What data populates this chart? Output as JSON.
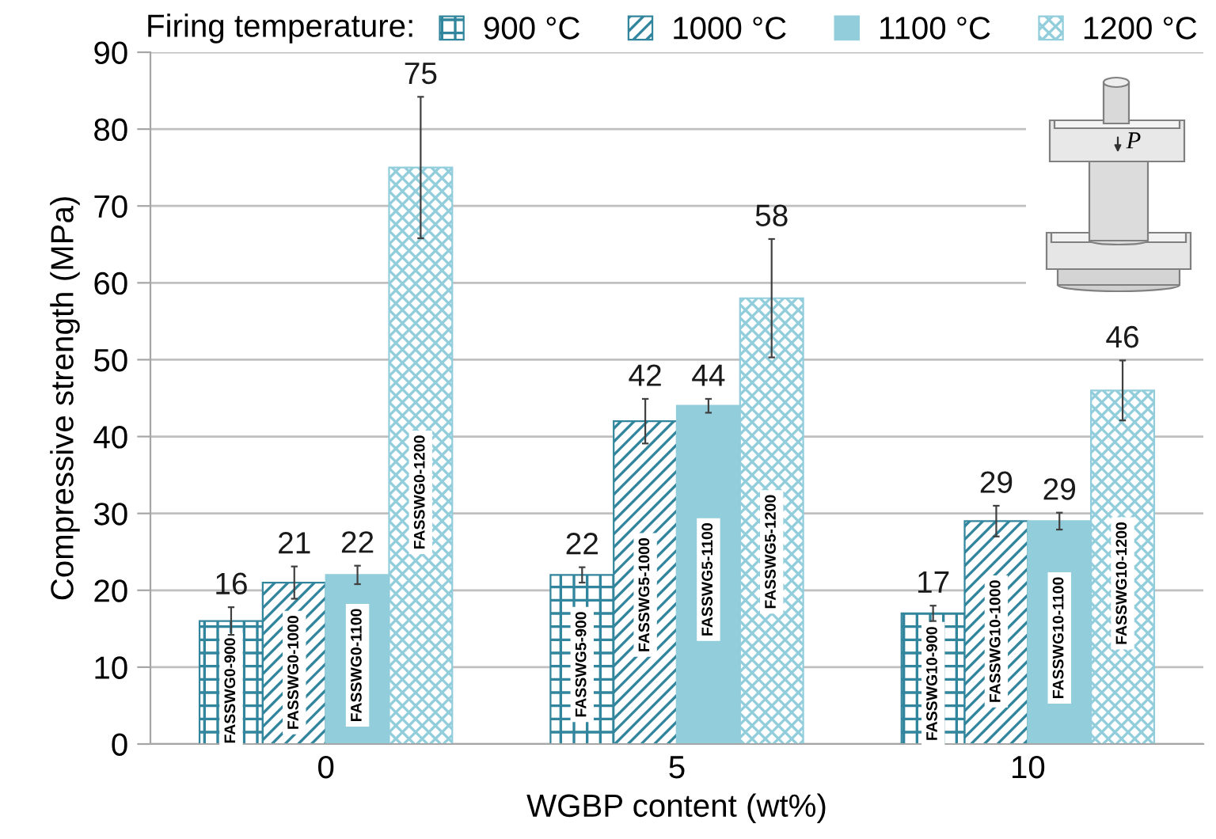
{
  "chart_data": {
    "type": "bar",
    "xlabel": "WGBP content (wt%)",
    "ylabel": "Compressive strength (MPa)",
    "legend_title": "Firing temperature:",
    "categories": [
      "0",
      "5",
      "10"
    ],
    "series": [
      {
        "name": "900 °C",
        "color": "#31859c",
        "values": [
          16,
          22,
          17
        ],
        "errors": [
          1.8,
          1.0,
          1.0
        ]
      },
      {
        "name": "1000 °C",
        "color": "#31859c",
        "values": [
          21,
          42,
          29
        ],
        "errors": [
          2.1,
          2.9,
          2.0
        ]
      },
      {
        "name": "1100 °C",
        "color": "#92cddc",
        "values": [
          22,
          44,
          29
        ],
        "errors": [
          1.2,
          0.9,
          1.1
        ]
      },
      {
        "name": "1200 °C",
        "color": "#92cddc",
        "values": [
          75,
          58,
          46
        ],
        "errors": [
          9.2,
          7.7,
          3.9
        ]
      }
    ],
    "ylim": [
      0,
      90
    ],
    "yticks": [
      0,
      10,
      20,
      30,
      40,
      50,
      60,
      70,
      80,
      90
    ],
    "grid": "y",
    "legend": "top",
    "data_labels": true,
    "annotations": [
      "FASSWG0-900",
      "FASSWG0-1000",
      "FASSWG0-1100",
      "FASSWG0-1200",
      "FASSWG5-900",
      "FASSWG5-1000",
      "FASSWG5-1100",
      "FASSWG5-1200",
      "FASSWG10-900",
      "FASSWG10-1000",
      "FASSWG10-1100",
      "FASSWG10-1200",
      "P"
    ]
  }
}
